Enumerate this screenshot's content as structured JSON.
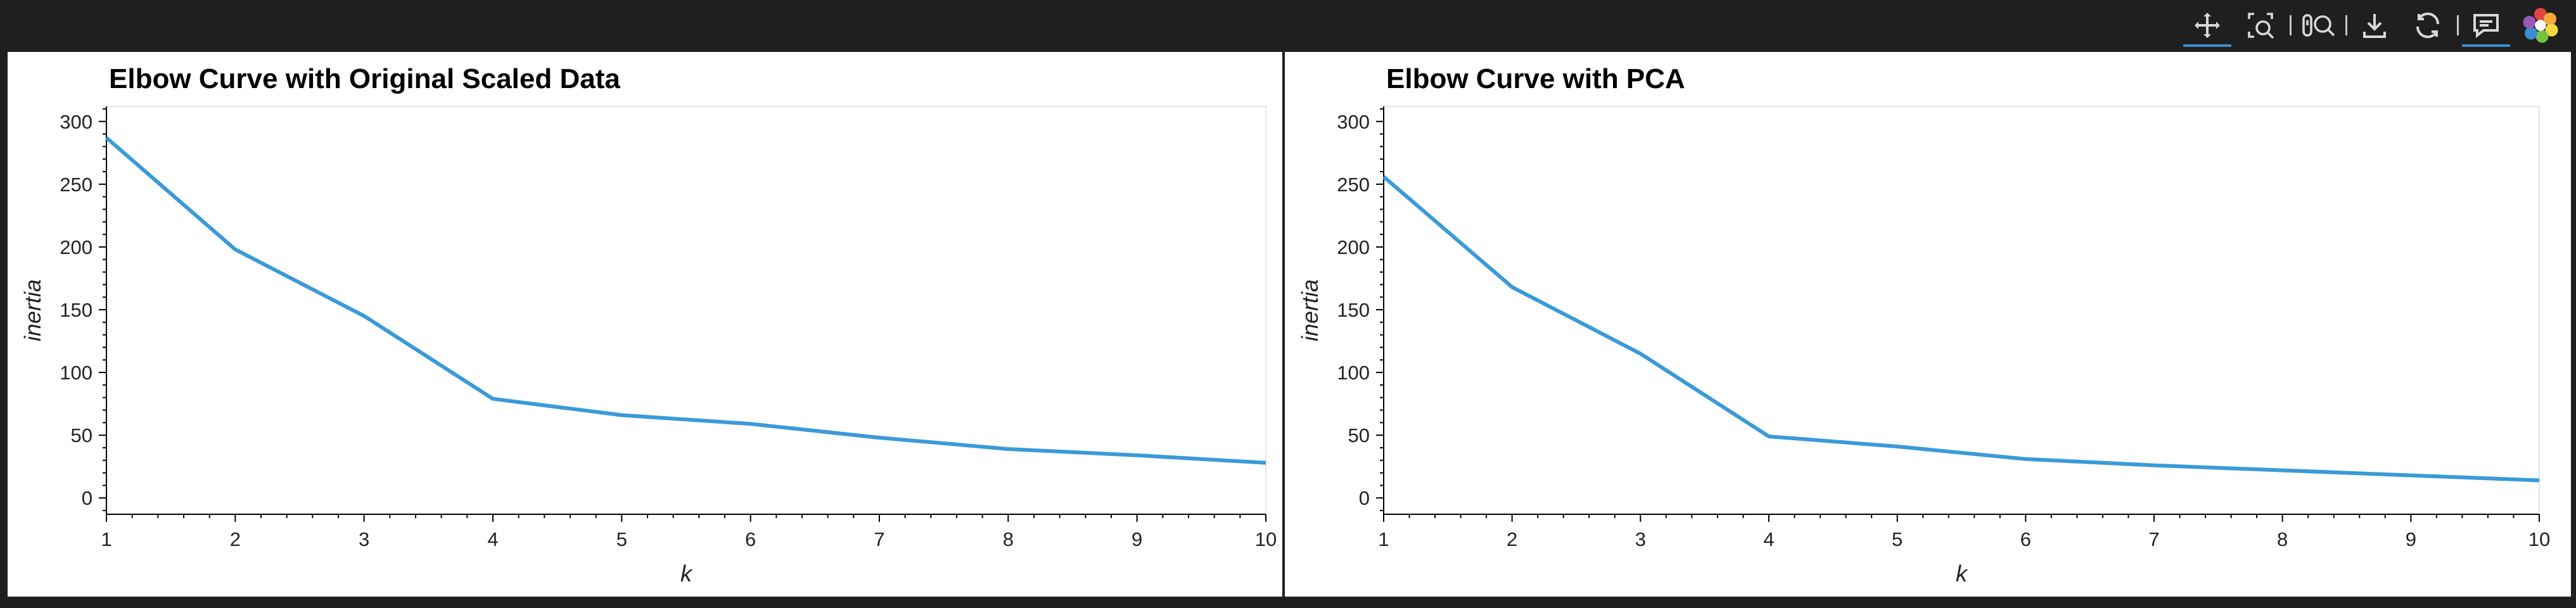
{
  "toolbar": {
    "tools": [
      {
        "name": "pan",
        "icon": "pan-move-icon",
        "active": true
      },
      {
        "name": "box-zoom",
        "icon": "box-zoom-icon",
        "active": false
      },
      {
        "name": "wheel-zoom",
        "icon": "wheel-zoom-icon",
        "active": false
      },
      {
        "name": "save",
        "icon": "save-download-icon",
        "active": false
      },
      {
        "name": "reset",
        "icon": "reset-icon",
        "active": false
      },
      {
        "name": "hover",
        "icon": "hover-tooltip-icon",
        "active": true
      },
      {
        "name": "bokeh-logo",
        "icon": "bokeh-logo-icon",
        "active": false
      }
    ],
    "active_color": "#3b8fd1"
  },
  "line_color": "#3a9ad9",
  "chart_data": [
    {
      "type": "line",
      "title": "Elbow Curve with Original Scaled Data",
      "xlabel": "k",
      "ylabel": "inertia",
      "x": [
        1,
        2,
        3,
        4,
        5,
        6,
        7,
        8,
        9,
        10
      ],
      "series": [
        {
          "values": [
            287,
            198,
            145,
            79,
            66,
            59,
            48,
            39,
            34,
            28
          ]
        }
      ],
      "xlim": [
        1,
        10
      ],
      "ylim": [
        -13,
        312
      ],
      "yticks": [
        0,
        50,
        100,
        150,
        200,
        250,
        300
      ],
      "xticks": [
        1,
        2,
        3,
        4,
        5,
        6,
        7,
        8,
        9,
        10
      ],
      "grid": false
    },
    {
      "type": "line",
      "title": "Elbow Curve with PCA",
      "xlabel": "k",
      "ylabel": "inertia",
      "x": [
        1,
        2,
        3,
        4,
        5,
        6,
        7,
        8,
        9,
        10
      ],
      "series": [
        {
          "values": [
            256,
            168,
            115,
            49,
            41,
            31,
            26,
            22,
            18,
            14
          ]
        }
      ],
      "xlim": [
        1,
        10
      ],
      "ylim": [
        -13,
        312
      ],
      "yticks": [
        0,
        50,
        100,
        150,
        200,
        250,
        300
      ],
      "xticks": [
        1,
        2,
        3,
        4,
        5,
        6,
        7,
        8,
        9,
        10
      ],
      "grid": false
    }
  ]
}
